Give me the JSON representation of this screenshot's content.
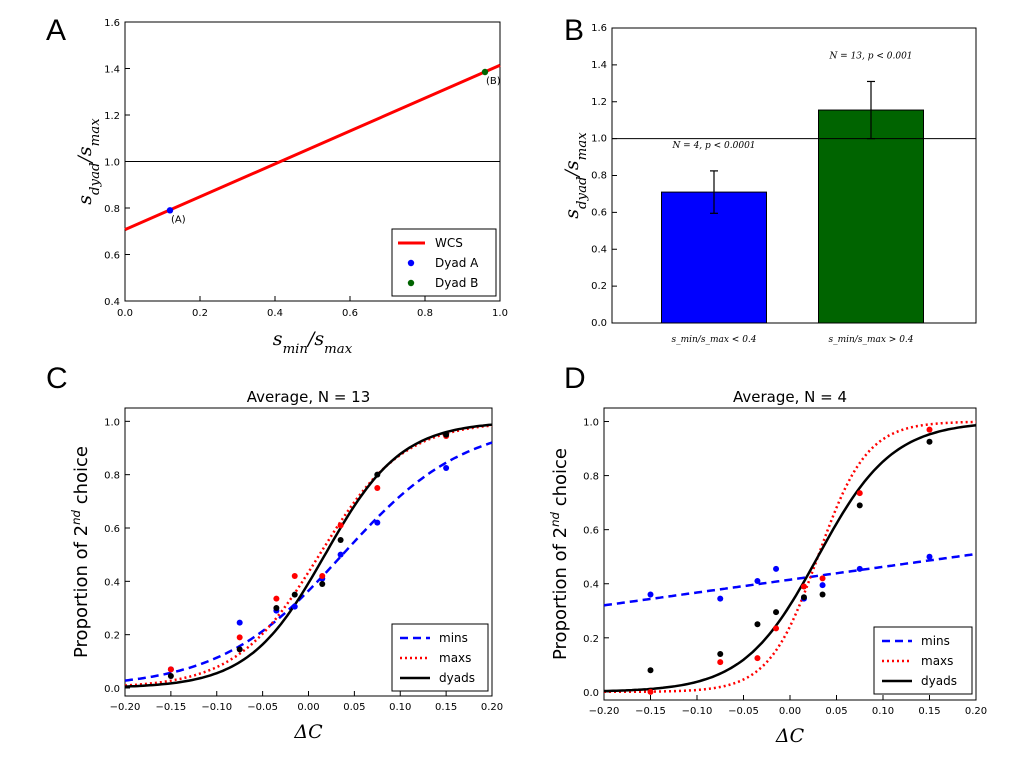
{
  "panels": {
    "A": "A",
    "B": "B",
    "C": "C",
    "D": "D"
  },
  "chart_data": [
    {
      "id": "A",
      "type": "line",
      "xlabel": "s_min/s_max",
      "ylabel": "s_dyad/s_max",
      "xlim": [
        0.0,
        1.0
      ],
      "ylim": [
        0.4,
        1.6
      ],
      "xticks": [
        "0.0",
        "0.2",
        "0.4",
        "0.6",
        "0.8",
        "1.0"
      ],
      "yticks": [
        "0.4",
        "0.6",
        "0.8",
        "1.0",
        "1.2",
        "1.4",
        "1.6"
      ],
      "hline": 1.0,
      "series": [
        {
          "name": "WCS",
          "color": "#ff0000",
          "kind": "line",
          "x": [
            0.0,
            1.0
          ],
          "y": [
            0.707,
            1.414
          ]
        },
        {
          "name": "Dyad A",
          "color": "#0000ff",
          "kind": "point",
          "x": [
            0.12
          ],
          "y": [
            0.79
          ],
          "label": "(A)"
        },
        {
          "name": "Dyad B",
          "color": "#006400",
          "kind": "point",
          "x": [
            0.96
          ],
          "y": [
            1.385
          ],
          "label": "(B)"
        }
      ],
      "legend": "lower-right"
    },
    {
      "id": "B",
      "type": "bar",
      "ylabel": "s_dyad/s_max",
      "ylim": [
        0.0,
        1.6
      ],
      "yticks": [
        "0.0",
        "0.2",
        "0.4",
        "0.6",
        "0.8",
        "1.0",
        "1.2",
        "1.4",
        "1.6"
      ],
      "categories": [
        "s_min/s_max < 0.4",
        "s_min/s_max > 0.4"
      ],
      "values": [
        0.71,
        1.155
      ],
      "errors": [
        0.115,
        0.155
      ],
      "colors": [
        "#0000ff",
        "#006400"
      ],
      "annotations": [
        "N = 4, p < 0.0001",
        "N = 13, p < 0.001"
      ],
      "hline": 1.0
    },
    {
      "id": "C",
      "type": "line",
      "title": "Average, N = 13",
      "xlabel": "ΔC",
      "ylabel": "Proportion of 2nd choice",
      "xlim": [
        -0.2,
        0.2
      ],
      "ylim": [
        -0.03,
        1.05
      ],
      "xticks": [
        "−0.20",
        "−0.15",
        "−0.10",
        "−0.05",
        "0.00",
        "0.05",
        "0.10",
        "0.15",
        "0.20"
      ],
      "yticks": [
        "0.0",
        "0.2",
        "0.4",
        "0.6",
        "0.8",
        "1.0"
      ],
      "x": [
        -0.15,
        -0.075,
        -0.035,
        -0.015,
        0.015,
        0.035,
        0.075,
        0.15
      ],
      "series": [
        {
          "name": "mins",
          "color": "#0000ff",
          "dash": "dashed",
          "k": 15,
          "x0": 0.037,
          "points": [
            0.07,
            0.245,
            0.29,
            0.305,
            0.41,
            0.5,
            0.62,
            0.825
          ]
        },
        {
          "name": "maxs",
          "color": "#ff0000",
          "dash": "dashdot",
          "k": 22,
          "x0": 0.012,
          "points": [
            0.07,
            0.19,
            0.335,
            0.42,
            0.42,
            0.61,
            0.75,
            0.945
          ]
        },
        {
          "name": "dyads",
          "color": "#000000",
          "dash": "solid",
          "k": 24,
          "x0": 0.018,
          "points": [
            0.045,
            0.145,
            0.3,
            0.35,
            0.39,
            0.555,
            0.8,
            0.95
          ]
        }
      ],
      "legend": "lower-right"
    },
    {
      "id": "D",
      "type": "line",
      "title": "Average, N = 4",
      "xlabel": "ΔC",
      "ylabel": "Proportion of 2nd choice",
      "xlim": [
        -0.2,
        0.2
      ],
      "ylim": [
        -0.03,
        1.05
      ],
      "xticks": [
        "−0.20",
        "−0.15",
        "−0.10",
        "−0.05",
        "0.00",
        "0.05",
        "0.10",
        "0.15",
        "0.20"
      ],
      "yticks": [
        "0.0",
        "0.2",
        "0.4",
        "0.6",
        "0.8",
        "1.0"
      ],
      "x": [
        -0.15,
        -0.075,
        -0.035,
        -0.015,
        0.015,
        0.035,
        0.075,
        0.15
      ],
      "series": [
        {
          "name": "mins",
          "color": "#0000ff",
          "dash": "dashed",
          "linear": [
            0.32,
            0.51
          ],
          "points": [
            0.36,
            0.345,
            0.41,
            0.455,
            0.345,
            0.395,
            0.455,
            0.5
          ]
        },
        {
          "name": "maxs",
          "color": "#ff0000",
          "dash": "dashdot",
          "k": 38,
          "x0": 0.03,
          "points": [
            0.0,
            0.11,
            0.125,
            0.235,
            0.39,
            0.42,
            0.735,
            0.97
          ]
        },
        {
          "name": "dyads",
          "color": "#000000",
          "dash": "solid",
          "k": 25,
          "x0": 0.03,
          "points": [
            0.08,
            0.14,
            0.25,
            0.295,
            0.35,
            0.36,
            0.69,
            0.925
          ]
        }
      ],
      "legend": "lower-right"
    }
  ]
}
